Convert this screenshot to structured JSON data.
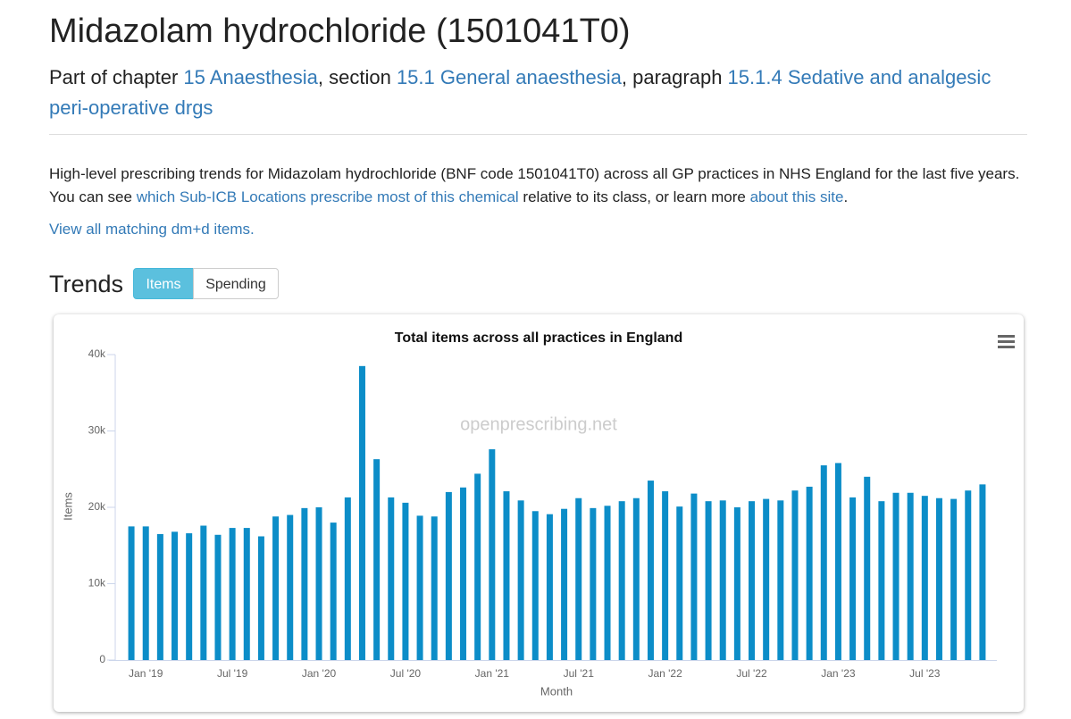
{
  "header": {
    "title": "Midazolam hydrochloride (1501041T0)",
    "subtitle": [
      {
        "text": "Part of chapter "
      },
      {
        "link": "15 Anaesthesia"
      },
      {
        "text": ", section "
      },
      {
        "link": "15.1 General anaesthesia"
      },
      {
        "text": ", paragraph "
      },
      {
        "link": "15.1.4 Sedative and analgesic peri-operative drgs"
      }
    ]
  },
  "intro": [
    {
      "text": "High-level prescribing trends for Midazolam hydrochloride (BNF code 1501041T0) across all GP practices in NHS England for the last five years. You can see "
    },
    {
      "link": "which Sub-ICB Locations prescribe most of this chemical"
    },
    {
      "text": " relative to its class, or learn more "
    },
    {
      "link": "about this site"
    },
    {
      "text": "."
    }
  ],
  "dmd_link": "View all matching dm+d items.",
  "trends": {
    "heading": "Trends",
    "buttons": [
      "Items",
      "Spending"
    ],
    "active": 0
  },
  "chart_data": {
    "type": "bar",
    "title": "Total items across all practices in England",
    "watermark": "openprescribing.net",
    "xlabel": "Month",
    "ylabel": "Items",
    "color": "#0c8dc8",
    "grid": false,
    "categories": [
      null,
      "Jan '19",
      null,
      null,
      null,
      null,
      null,
      "Jul '19",
      null,
      null,
      null,
      null,
      null,
      "Jan '20",
      null,
      null,
      null,
      null,
      null,
      "Jul '20",
      null,
      null,
      null,
      null,
      null,
      "Jan '21",
      null,
      null,
      null,
      null,
      null,
      "Jul '21",
      null,
      null,
      null,
      null,
      null,
      "Jan '22",
      null,
      null,
      null,
      null,
      null,
      "Jul '22",
      null,
      null,
      null,
      null,
      null,
      "Jan '23",
      null,
      null,
      null,
      null,
      null,
      "Jul '23",
      null,
      null,
      null,
      null
    ],
    "values": [
      17500,
      17500,
      16500,
      16800,
      16600,
      17600,
      16400,
      17300,
      17300,
      16200,
      18800,
      19000,
      19900,
      20000,
      18000,
      21300,
      38500,
      26300,
      21300,
      20600,
      18900,
      18800,
      22000,
      22600,
      24400,
      27600,
      22100,
      20900,
      19500,
      19100,
      19800,
      21200,
      19900,
      20200,
      20800,
      21200,
      23500,
      22100,
      20100,
      21800,
      20800,
      20900,
      20000,
      20800,
      21100,
      20900,
      22200,
      22700,
      25500,
      25800,
      21300,
      24000,
      20800,
      21900,
      21900,
      21500,
      21200,
      21100,
      22200,
      23000
    ],
    "ylim": [
      0,
      40000
    ],
    "yticks": [
      0,
      {
        "value": 10000,
        "label": "10k"
      },
      {
        "value": 20000,
        "label": "20k"
      },
      {
        "value": 30000,
        "label": "30k"
      },
      {
        "value": 40000,
        "label": "40k"
      }
    ]
  }
}
